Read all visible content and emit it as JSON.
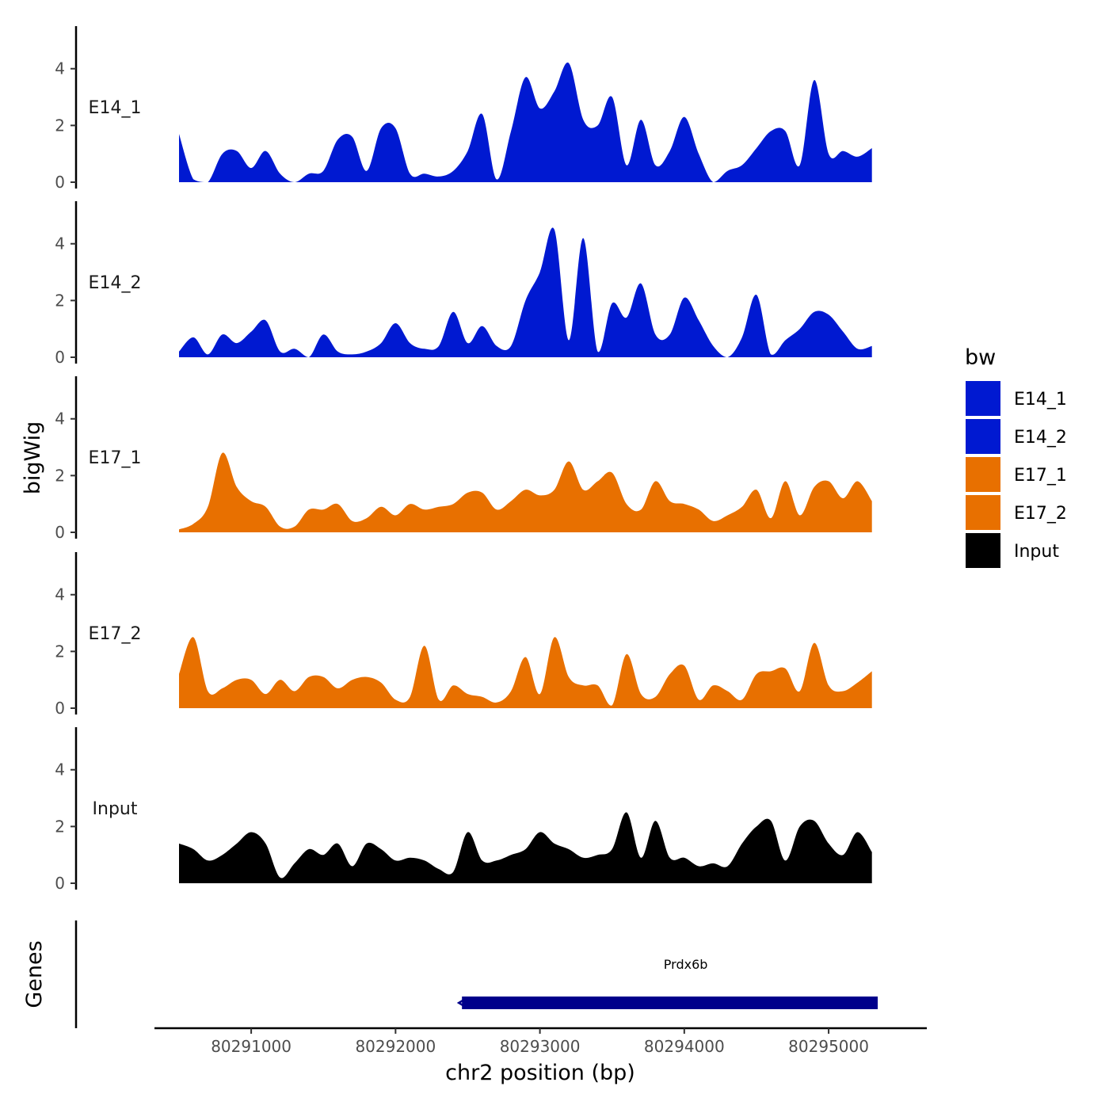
{
  "chart_data": {
    "type": "area",
    "xlabel": "chr2 position (bp)",
    "ylabel": "bigWig",
    "genes_panel_label": "Genes",
    "xlim": [
      80290330,
      80295680
    ],
    "x_ticks": [
      80291000,
      80292000,
      80293000,
      80294000,
      80295000
    ],
    "ylim": [
      0,
      5.5
    ],
    "y_ticks": [
      0,
      2,
      4
    ],
    "x": [
      80290500,
      80290600,
      80290700,
      80290800,
      80290900,
      80291000,
      80291100,
      80291200,
      80291300,
      80291400,
      80291500,
      80291600,
      80291700,
      80291800,
      80291900,
      80292000,
      80292100,
      80292200,
      80292300,
      80292400,
      80292500,
      80292600,
      80292700,
      80292800,
      80292900,
      80293000,
      80293100,
      80293200,
      80293300,
      80293400,
      80293500,
      80293600,
      80293700,
      80293800,
      80293900,
      80294000,
      80294100,
      80294200,
      80294300,
      80294400,
      80294500,
      80294600,
      80294700,
      80294800,
      80294900,
      80295000,
      80295100,
      80295200,
      80295300
    ],
    "series": [
      {
        "name": "E14_1",
        "color": "#0019d1",
        "values": [
          1.7,
          0.1,
          0.0,
          1.0,
          1.1,
          0.5,
          1.1,
          0.3,
          0.0,
          0.3,
          0.4,
          1.5,
          1.6,
          0.4,
          1.9,
          1.9,
          0.3,
          0.3,
          0.2,
          0.4,
          1.1,
          2.4,
          0.1,
          1.8,
          3.7,
          2.6,
          3.2,
          4.2,
          2.2,
          2.0,
          3.0,
          0.6,
          2.2,
          0.6,
          1.1,
          2.3,
          1.0,
          0.0,
          0.4,
          0.6,
          1.2,
          1.8,
          1.8,
          0.6,
          3.6,
          1.0,
          1.1,
          0.9,
          1.2
        ]
      },
      {
        "name": "E14_2",
        "color": "#0019d1",
        "values": [
          0.2,
          0.7,
          0.1,
          0.8,
          0.5,
          0.9,
          1.3,
          0.2,
          0.3,
          0.0,
          0.8,
          0.2,
          0.1,
          0.2,
          0.5,
          1.2,
          0.5,
          0.3,
          0.4,
          1.6,
          0.5,
          1.1,
          0.4,
          0.4,
          2.0,
          3.0,
          4.5,
          0.6,
          4.2,
          0.2,
          1.9,
          1.4,
          2.6,
          0.8,
          0.8,
          2.1,
          1.3,
          0.4,
          0.0,
          0.7,
          2.2,
          0.1,
          0.6,
          1.0,
          1.6,
          1.5,
          0.9,
          0.3,
          0.4
        ]
      },
      {
        "name": "E17_1",
        "color": "#e87000",
        "values": [
          0.1,
          0.3,
          0.9,
          2.8,
          1.6,
          1.1,
          0.9,
          0.2,
          0.2,
          0.8,
          0.8,
          1.0,
          0.4,
          0.5,
          0.9,
          0.6,
          1.0,
          0.8,
          0.9,
          1.0,
          1.4,
          1.4,
          0.8,
          1.1,
          1.5,
          1.3,
          1.5,
          2.5,
          1.5,
          1.8,
          2.1,
          1.0,
          0.8,
          1.8,
          1.1,
          1.0,
          0.8,
          0.4,
          0.6,
          0.9,
          1.5,
          0.5,
          1.8,
          0.6,
          1.6,
          1.8,
          1.2,
          1.8,
          1.1
        ]
      },
      {
        "name": "E17_2",
        "color": "#e87000",
        "values": [
          1.2,
          2.5,
          0.6,
          0.7,
          1.0,
          1.0,
          0.5,
          1.0,
          0.6,
          1.1,
          1.1,
          0.7,
          1.0,
          1.1,
          0.9,
          0.3,
          0.4,
          2.2,
          0.3,
          0.8,
          0.5,
          0.4,
          0.2,
          0.6,
          1.8,
          0.5,
          2.5,
          1.1,
          0.8,
          0.8,
          0.1,
          1.9,
          0.5,
          0.4,
          1.2,
          1.5,
          0.3,
          0.8,
          0.6,
          0.3,
          1.2,
          1.3,
          1.4,
          0.6,
          2.3,
          0.8,
          0.6,
          0.9,
          1.3
        ]
      },
      {
        "name": "Input",
        "color": "#000000",
        "values": [
          1.4,
          1.2,
          0.8,
          1.0,
          1.4,
          1.8,
          1.4,
          0.2,
          0.7,
          1.2,
          1.0,
          1.4,
          0.6,
          1.4,
          1.2,
          0.8,
          0.9,
          0.8,
          0.5,
          0.4,
          1.8,
          0.8,
          0.8,
          1.0,
          1.2,
          1.8,
          1.4,
          1.2,
          0.9,
          1.0,
          1.2,
          2.5,
          0.9,
          2.2,
          0.9,
          0.9,
          0.6,
          0.7,
          0.6,
          1.4,
          2.0,
          2.2,
          0.8,
          2.0,
          2.2,
          1.4,
          1.0,
          1.8,
          1.1
        ]
      }
    ],
    "legend": {
      "title": "bw",
      "position": "right",
      "entries": [
        {
          "label": "E14_1",
          "color": "#0019d1"
        },
        {
          "label": "E14_2",
          "color": "#0019d1"
        },
        {
          "label": "E17_1",
          "color": "#e87000"
        },
        {
          "label": "E17_2",
          "color": "#e87000"
        },
        {
          "label": "Input",
          "color": "#000000"
        }
      ]
    },
    "gene": {
      "name": "Prdx6b",
      "start": 80292460,
      "end": 80295340,
      "color": "#00008b"
    }
  }
}
